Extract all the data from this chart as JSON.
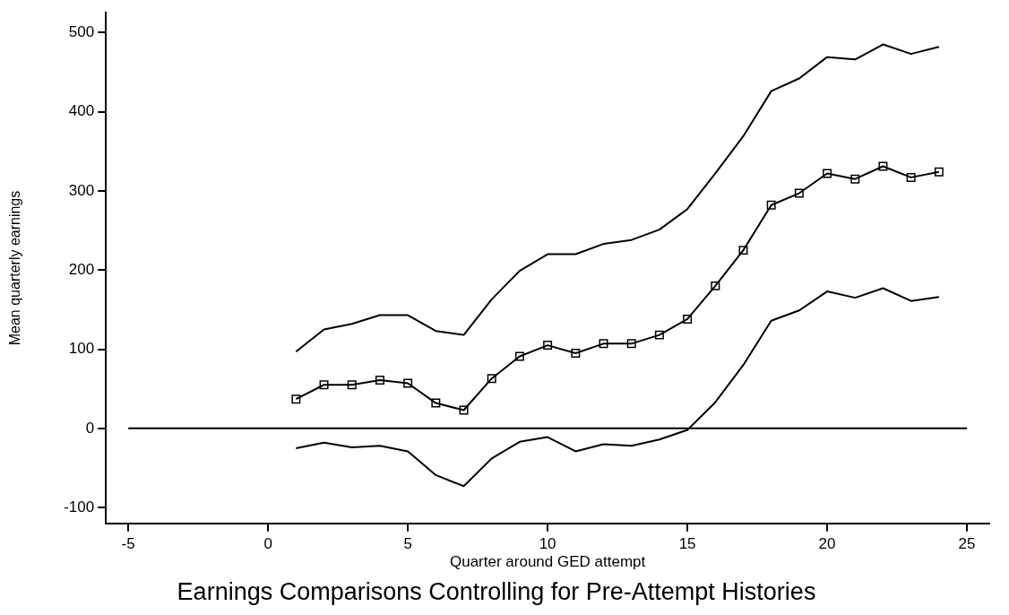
{
  "chart_data": {
    "type": "line",
    "title": "Earnings Comparisons Controlling for Pre-Attempt Histories",
    "xlabel": "Quarter around GED attempt",
    "ylabel": "Mean quarterly earnings",
    "x": [
      1,
      2,
      3,
      4,
      5,
      6,
      7,
      8,
      9,
      10,
      11,
      12,
      13,
      14,
      15,
      16,
      17,
      18,
      19,
      20,
      21,
      22,
      23,
      24
    ],
    "series": [
      {
        "color": "#000000",
        "marker": "none",
        "values": [
          97,
          125,
          132,
          143,
          143,
          123,
          118,
          163,
          199,
          220,
          220,
          233,
          238,
          251,
          277,
          322,
          369,
          426,
          442,
          469,
          466,
          485,
          473,
          482
        ]
      },
      {
        "color": "#000000",
        "marker": "square",
        "values": [
          37,
          55,
          55,
          61,
          57,
          32,
          23,
          63,
          91,
          105,
          95,
          107,
          107,
          118,
          138,
          180,
          225,
          282,
          297,
          322,
          315,
          331,
          317,
          324
        ]
      },
      {
        "color": "#000000",
        "marker": "none",
        "values": [
          -25,
          -18,
          -24,
          -22,
          -29,
          -59,
          -73,
          -38,
          -17,
          -11,
          -29,
          -20,
          -22,
          -14,
          -2,
          33,
          80,
          136,
          149,
          173,
          165,
          177,
          161,
          166
        ]
      }
    ],
    "xlim": [
      -5.8,
      25.8
    ],
    "xticks": [
      -5,
      0,
      5,
      10,
      15,
      20,
      25
    ],
    "ylim": [
      -120,
      525
    ],
    "yticks": [
      -100,
      0,
      100,
      200,
      300,
      400,
      500
    ],
    "ref_lines": [
      {
        "axis": "y",
        "value": 0,
        "color": "#000000"
      }
    ],
    "legend": false,
    "grid": false
  }
}
